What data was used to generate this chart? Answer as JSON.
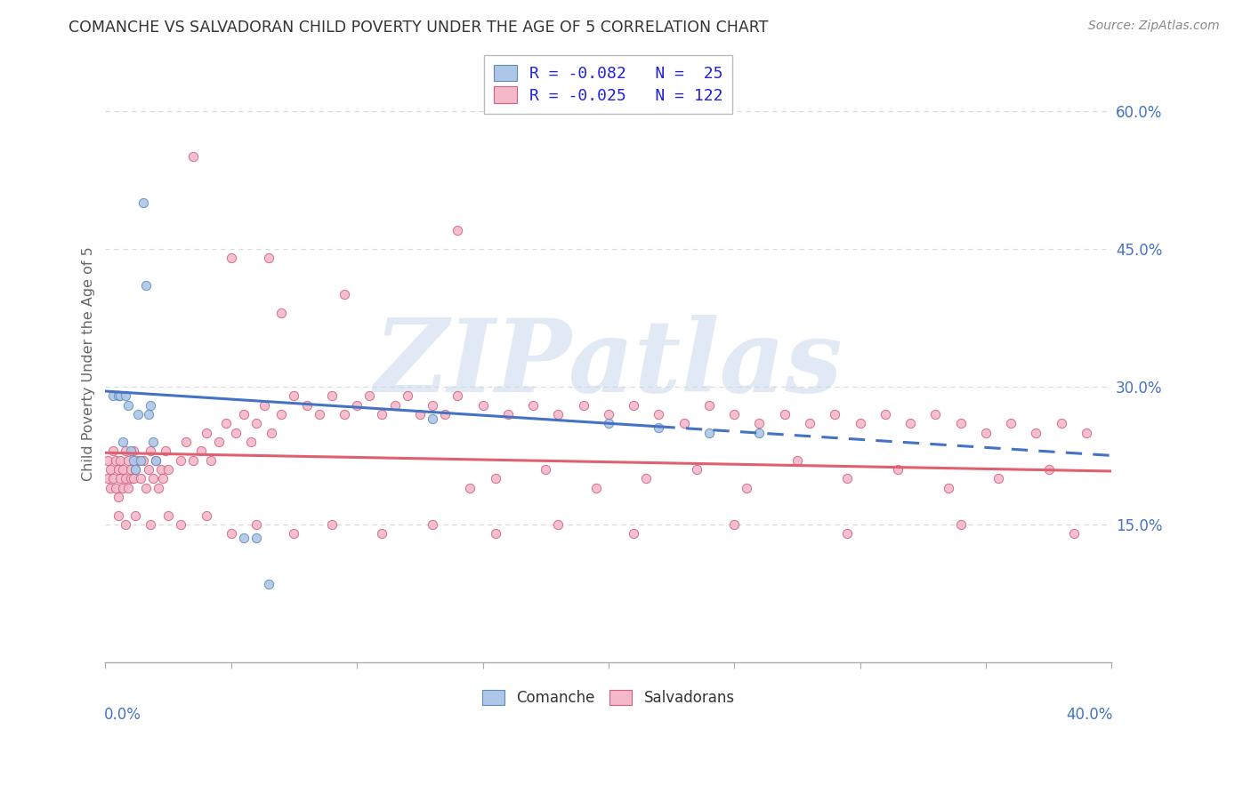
{
  "title": "COMANCHE VS SALVADORAN CHILD POVERTY UNDER THE AGE OF 5 CORRELATION CHART",
  "source": "Source: ZipAtlas.com",
  "ylabel": "Child Poverty Under the Age of 5",
  "ytick_labels": [
    "15.0%",
    "30.0%",
    "45.0%",
    "60.0%"
  ],
  "ytick_values": [
    0.15,
    0.3,
    0.45,
    0.6
  ],
  "xlim": [
    0.0,
    0.4
  ],
  "ylim": [
    0.0,
    0.65
  ],
  "comanche_face": "#aec6e8",
  "comanche_edge": "#5b8db8",
  "salvadoran_face": "#f5b8c8",
  "salvadoran_edge": "#d06080",
  "line_comanche": "#4472c4",
  "line_salvadoran": "#e06070",
  "watermark": "ZIPatlas",
  "watermark_color": "#c8d8ec",
  "background": "#ffffff",
  "grid_color": "#d8d8d8",
  "title_color": "#333333",
  "source_color": "#888888",
  "axis_tick_color": "#4472c4",
  "ylabel_color": "#666666",
  "legend_text_color": "#2222dd",
  "bottom_legend_color": "#333333",
  "comanche_x": [
    0.003,
    0.005,
    0.006,
    0.007,
    0.008,
    0.009,
    0.01,
    0.011,
    0.012,
    0.013,
    0.014,
    0.015,
    0.016,
    0.017,
    0.018,
    0.019,
    0.02,
    0.055,
    0.06,
    0.065,
    0.13,
    0.2,
    0.22,
    0.24,
    0.26
  ],
  "comanche_y": [
    0.29,
    0.29,
    0.29,
    0.24,
    0.29,
    0.28,
    0.23,
    0.22,
    0.21,
    0.27,
    0.22,
    0.5,
    0.41,
    0.27,
    0.28,
    0.24,
    0.22,
    0.135,
    0.135,
    0.085,
    0.265,
    0.26,
    0.255,
    0.25,
    0.25
  ],
  "salvadoran_x": [
    0.001,
    0.001,
    0.002,
    0.002,
    0.003,
    0.003,
    0.004,
    0.004,
    0.005,
    0.005,
    0.006,
    0.006,
    0.007,
    0.007,
    0.008,
    0.008,
    0.009,
    0.009,
    0.01,
    0.01,
    0.011,
    0.011,
    0.012,
    0.013,
    0.014,
    0.015,
    0.016,
    0.017,
    0.018,
    0.019,
    0.02,
    0.021,
    0.022,
    0.023,
    0.024,
    0.025,
    0.03,
    0.032,
    0.035,
    0.038,
    0.04,
    0.042,
    0.045,
    0.048,
    0.052,
    0.055,
    0.058,
    0.06,
    0.063,
    0.066,
    0.07,
    0.075,
    0.08,
    0.085,
    0.09,
    0.095,
    0.1,
    0.105,
    0.11,
    0.115,
    0.12,
    0.125,
    0.13,
    0.135,
    0.14,
    0.15,
    0.16,
    0.17,
    0.18,
    0.19,
    0.2,
    0.21,
    0.22,
    0.23,
    0.24,
    0.25,
    0.26,
    0.27,
    0.28,
    0.29,
    0.3,
    0.31,
    0.32,
    0.33,
    0.34,
    0.35,
    0.36,
    0.37,
    0.38,
    0.39,
    0.035,
    0.05,
    0.065,
    0.07,
    0.095,
    0.14,
    0.145,
    0.155,
    0.175,
    0.195,
    0.215,
    0.235,
    0.255,
    0.275,
    0.295,
    0.315,
    0.335,
    0.355,
    0.375,
    0.005,
    0.008,
    0.012,
    0.018,
    0.025,
    0.03,
    0.04,
    0.05,
    0.06,
    0.075,
    0.09,
    0.11,
    0.13,
    0.155,
    0.18,
    0.21,
    0.25,
    0.295,
    0.34,
    0.385
  ],
  "salvadoran_y": [
    0.22,
    0.2,
    0.21,
    0.19,
    0.23,
    0.2,
    0.22,
    0.19,
    0.21,
    0.18,
    0.2,
    0.22,
    0.19,
    0.21,
    0.23,
    0.2,
    0.22,
    0.19,
    0.2,
    0.21,
    0.23,
    0.2,
    0.21,
    0.22,
    0.2,
    0.22,
    0.19,
    0.21,
    0.23,
    0.2,
    0.22,
    0.19,
    0.21,
    0.2,
    0.23,
    0.21,
    0.22,
    0.24,
    0.22,
    0.23,
    0.25,
    0.22,
    0.24,
    0.26,
    0.25,
    0.27,
    0.24,
    0.26,
    0.28,
    0.25,
    0.27,
    0.29,
    0.28,
    0.27,
    0.29,
    0.27,
    0.28,
    0.29,
    0.27,
    0.28,
    0.29,
    0.27,
    0.28,
    0.27,
    0.29,
    0.28,
    0.27,
    0.28,
    0.27,
    0.28,
    0.27,
    0.28,
    0.27,
    0.26,
    0.28,
    0.27,
    0.26,
    0.27,
    0.26,
    0.27,
    0.26,
    0.27,
    0.26,
    0.27,
    0.26,
    0.25,
    0.26,
    0.25,
    0.26,
    0.25,
    0.55,
    0.44,
    0.44,
    0.38,
    0.4,
    0.47,
    0.19,
    0.2,
    0.21,
    0.19,
    0.2,
    0.21,
    0.19,
    0.22,
    0.2,
    0.21,
    0.19,
    0.2,
    0.21,
    0.16,
    0.15,
    0.16,
    0.15,
    0.16,
    0.15,
    0.16,
    0.14,
    0.15,
    0.14,
    0.15,
    0.14,
    0.15,
    0.14,
    0.15,
    0.14,
    0.15,
    0.14,
    0.15,
    0.14
  ],
  "trend_comanche_x0": 0.0,
  "trend_comanche_y0": 0.295,
  "trend_comanche_x1": 0.4,
  "trend_comanche_y1": 0.225,
  "trend_comanche_solid_end": 0.22,
  "trend_salvadoran_x0": 0.0,
  "trend_salvadoran_y0": 0.228,
  "trend_salvadoran_x1": 0.4,
  "trend_salvadoran_y1": 0.208
}
